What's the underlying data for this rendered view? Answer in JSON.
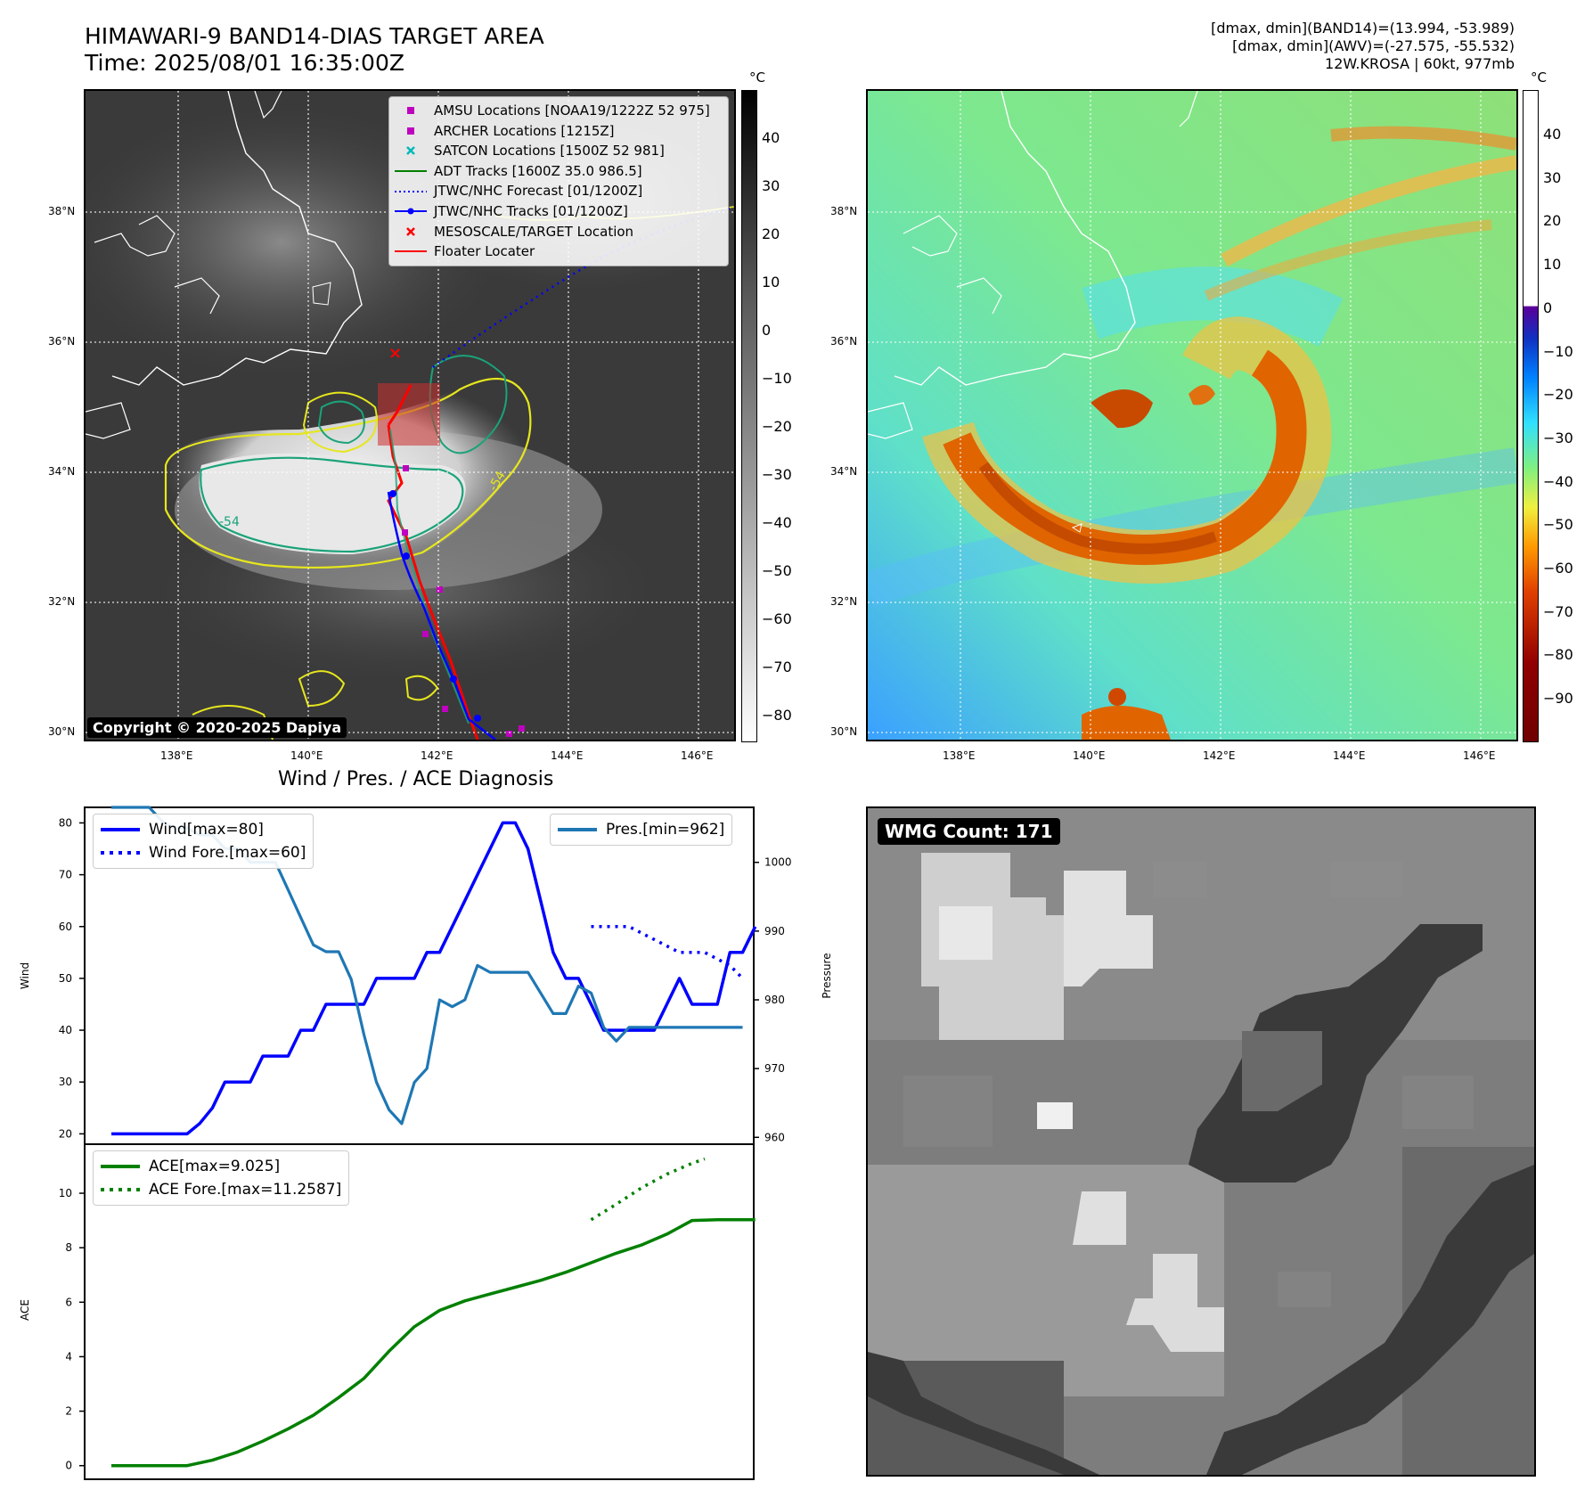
{
  "header": {
    "title_line1": "HIMAWARI-9 BAND14-DIAS TARGET AREA",
    "title_line2": "Time: 2025/08/01 16:35:00Z",
    "info_line1": "[dmax, dmin](BAND14)=(13.994, -53.989)",
    "info_line2": "[dmax, dmin](AWV)=(-27.575, -55.532)",
    "info_line3": "12W.KROSA | 60kt, 977mb"
  },
  "map_axes": {
    "lon_labels": [
      "138°E",
      "140°E",
      "142°E",
      "144°E",
      "146°E"
    ],
    "lat_labels": [
      "38°N",
      "36°N",
      "34°N",
      "32°N",
      "30°N"
    ]
  },
  "map_left": {
    "legend": [
      {
        "label": "AMSU Locations [NOAA19/1222Z 52 975]",
        "symbol": "square",
        "color": "#c000c0"
      },
      {
        "label": "ARCHER Locations [1215Z]",
        "symbol": "square",
        "color": "#c000c0"
      },
      {
        "label": "SATCON Locations [1500Z 52 981]",
        "symbol": "x",
        "color": "#00b8b8"
      },
      {
        "label": "ADT Tracks [1600Z 35.0 986.5]",
        "symbol": "line",
        "color": "#008000"
      },
      {
        "label": "JTWC/NHC Forecast [01/1200Z]",
        "symbol": "dotted",
        "color": "#0000ff"
      },
      {
        "label": "JTWC/NHC Tracks [01/1200Z]",
        "symbol": "line-dot",
        "color": "#0000ff"
      },
      {
        "label": "MESOSCALE/TARGET Location",
        "symbol": "x",
        "color": "#ff0000"
      },
      {
        "label": "Floater Locater",
        "symbol": "line",
        "color": "#ff0000"
      }
    ],
    "contour_labels": [
      "-54",
      "-54"
    ],
    "copyright": "Copyright © 2020-2025 Dapiya"
  },
  "colorbar_left": {
    "unit": "°C",
    "ticks": [
      "40",
      "30",
      "20",
      "10",
      "0",
      "−10",
      "−20",
      "−30",
      "−40",
      "−50",
      "−60",
      "−70",
      "−80"
    ]
  },
  "colorbar_right": {
    "unit": "°C",
    "ticks": [
      "40",
      "30",
      "20",
      "10",
      "0",
      "−10",
      "−20",
      "−30",
      "−40",
      "−50",
      "−60",
      "−70",
      "−80",
      "−90"
    ]
  },
  "wmg": {
    "label": "WMG Count: 171"
  },
  "chart_data": [
    {
      "type": "line",
      "title": "Wind / Pres. / ACE Diagnosis",
      "ylabel": "Wind",
      "ylabel_right": "Pressure",
      "ylim": [
        18,
        83
      ],
      "ylim_right": [
        959,
        1008
      ],
      "yticks": [
        20,
        30,
        40,
        50,
        60,
        70,
        80
      ],
      "yticks_right": [
        960,
        970,
        980,
        990,
        1000
      ],
      "xlim": [
        0,
        26.5
      ],
      "legend_left": [
        "Wind[max=80]",
        "Wind Fore.[max=60]"
      ],
      "legend_right": [
        "Pres.[min=962]"
      ],
      "series": [
        {
          "name": "Wind[max=80]",
          "color": "#0000ff",
          "style": "solid",
          "x": [
            0,
            1,
            2,
            3,
            3.5,
            4,
            4.5,
            5,
            5.5,
            6,
            6.5,
            7,
            7.5,
            8,
            8.5,
            9,
            9.5,
            10,
            10.5,
            11,
            11.5,
            12,
            12.5,
            13,
            13.5,
            14,
            14.5,
            15,
            15.5,
            16,
            16.5,
            17,
            17.5,
            18,
            18.5,
            19,
            19.5,
            20,
            20.5,
            21,
            21.5,
            22,
            22.5,
            23,
            23.5,
            24,
            24.5,
            25,
            25.5
          ],
          "y": [
            20,
            20,
            20,
            20,
            22,
            25,
            30,
            30,
            30,
            35,
            35,
            35,
            40,
            40,
            45,
            45,
            45,
            45,
            50,
            50,
            50,
            50,
            55,
            55,
            60,
            65,
            70,
            75,
            80,
            80,
            75,
            65,
            55,
            50,
            50,
            45,
            40,
            40,
            40,
            40,
            40,
            45,
            50,
            45,
            45,
            45,
            55,
            55,
            60
          ]
        },
        {
          "name": "Wind Fore.[max=60]",
          "color": "#0000ff",
          "style": "dotted",
          "x": [
            19.0,
            19.5,
            20.5,
            21.5,
            22.5,
            23.5,
            24.5,
            25.0
          ],
          "y": [
            60,
            60,
            60,
            57.5,
            55,
            55,
            52.5,
            50
          ]
        },
        {
          "name": "Pres.[min=962]",
          "color": "#1f77b4",
          "style": "solid",
          "axis": "right",
          "x": [
            0,
            1.5,
            2,
            2.5,
            3,
            3.5,
            4,
            4.5,
            5,
            5.5,
            6,
            6.5,
            7,
            7.5,
            8,
            8.5,
            9,
            9.5,
            10,
            10.5,
            11,
            11.5,
            12,
            12.5,
            13,
            13.5,
            14,
            14.5,
            15,
            15.5,
            16,
            16.5,
            17,
            17.5,
            18,
            18.5,
            19,
            19.5,
            20,
            20.5,
            21,
            21.5,
            22,
            22.5,
            23,
            23.5,
            24,
            24.5,
            25
          ],
          "y": [
            1008,
            1008,
            1006,
            1005,
            1005,
            1004,
            1004,
            1002,
            1002,
            1000,
            1000,
            1000,
            996,
            992,
            988,
            987,
            987,
            983,
            975,
            968,
            964,
            962,
            968,
            970,
            980,
            979,
            980,
            985,
            984,
            984,
            984,
            984,
            981,
            978,
            978,
            982,
            981,
            976,
            974,
            976,
            976,
            976,
            976,
            976,
            976,
            976,
            976,
            976,
            976
          ]
        }
      ]
    },
    {
      "type": "line",
      "ylabel": "ACE",
      "ylim": [
        -0.5,
        11.8
      ],
      "yticks": [
        0,
        2,
        4,
        6,
        8,
        10
      ],
      "xlim": [
        0,
        26.5
      ],
      "legend": [
        "ACE[max=9.025]",
        "ACE Fore.[max=11.2587]"
      ],
      "series": [
        {
          "name": "ACE[max=9.025]",
          "color": "#008000",
          "style": "solid",
          "x": [
            0,
            1,
            2,
            3,
            4,
            5,
            6,
            7,
            8,
            9,
            10,
            11,
            12,
            13,
            14,
            15,
            16,
            17,
            18,
            19,
            20,
            21,
            22,
            23,
            24,
            25,
            25.5
          ],
          "y": [
            0,
            0,
            0,
            0,
            0.2,
            0.5,
            0.9,
            1.35,
            1.85,
            2.5,
            3.2,
            4.2,
            5.1,
            5.7,
            6.05,
            6.3,
            6.55,
            6.8,
            7.1,
            7.45,
            7.8,
            8.1,
            8.5,
            9.0,
            9.025,
            9.025,
            9.025
          ]
        },
        {
          "name": "ACE Fore.[max=11.2587]",
          "color": "#008000",
          "style": "dotted",
          "x": [
            19.0,
            20.0,
            21.0,
            22.0,
            23.0,
            23.5
          ],
          "y": [
            9.025,
            9.6,
            10.2,
            10.7,
            11.1,
            11.2587
          ]
        }
      ]
    }
  ]
}
